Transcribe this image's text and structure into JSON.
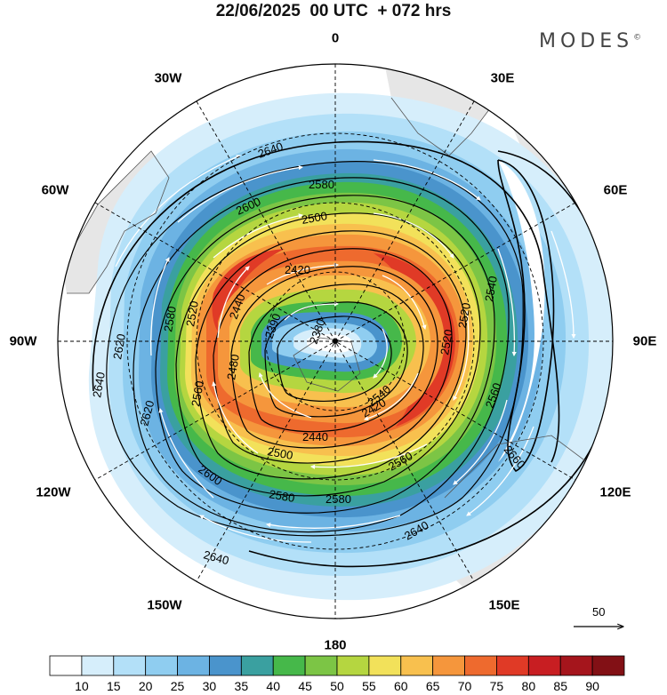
{
  "title": "22/06/2025  00 UTC  + 072 hrs",
  "brand": "MODES",
  "brand_mark": "©",
  "longitude_labels": {
    "n0": "0",
    "n30e": "30E",
    "n60e": "60E",
    "n90e": "90E",
    "n120e": "120E",
    "n150e": "150E",
    "n180": "180",
    "n150w": "150W",
    "n120w": "120W",
    "n90w": "90W",
    "n60w": "60W",
    "n30w": "30W"
  },
  "reference_vector": "50",
  "colorbar": {
    "colors": [
      "#ffffff",
      "#d6eefb",
      "#b3e0f8",
      "#8fcdf0",
      "#6cb3e3",
      "#4a94cc",
      "#3aa0a0",
      "#46b84a",
      "#7cc545",
      "#b5d640",
      "#f2e15a",
      "#f8c04e",
      "#f5963c",
      "#ee6a2e",
      "#e03a26",
      "#c81e22",
      "#a5151c",
      "#821015"
    ],
    "ticks": [
      "10",
      "15",
      "20",
      "25",
      "30",
      "35",
      "40",
      "45",
      "50",
      "55",
      "60",
      "65",
      "70",
      "75",
      "80",
      "85",
      "90"
    ]
  },
  "contour_labels": [
    {
      "id": "c1",
      "text": "2640"
    },
    {
      "id": "c2",
      "text": "2580"
    },
    {
      "id": "c3",
      "text": "2600"
    },
    {
      "id": "c4",
      "text": "2500"
    },
    {
      "id": "c5",
      "text": "2420"
    },
    {
      "id": "c6",
      "text": "2440"
    },
    {
      "id": "c7",
      "text": "2390"
    },
    {
      "id": "c8",
      "text": "2620"
    },
    {
      "id": "c9",
      "text": "2640"
    },
    {
      "id": "c10",
      "text": "2580"
    },
    {
      "id": "c11",
      "text": "2560"
    },
    {
      "id": "c12",
      "text": "2480"
    },
    {
      "id": "c13",
      "text": "2620"
    },
    {
      "id": "c14",
      "text": "2520"
    },
    {
      "id": "c15",
      "text": "2600"
    },
    {
      "id": "c16",
      "text": "2580"
    },
    {
      "id": "c17",
      "text": "2580"
    },
    {
      "id": "c18",
      "text": "2560"
    },
    {
      "id": "c19",
      "text": "2440"
    },
    {
      "id": "c20",
      "text": "2420"
    },
    {
      "id": "c21",
      "text": "2500"
    },
    {
      "id": "c22",
      "text": "2640"
    },
    {
      "id": "c23",
      "text": "2640"
    },
    {
      "id": "c24",
      "text": "2660"
    },
    {
      "id": "c25",
      "text": "2560"
    },
    {
      "id": "c26",
      "text": "2520"
    },
    {
      "id": "c27",
      "text": "2540"
    },
    {
      "id": "c28",
      "text": "2520"
    },
    {
      "id": "c29",
      "text": "2380"
    },
    {
      "id": "c30",
      "text": "2540"
    }
  ]
}
